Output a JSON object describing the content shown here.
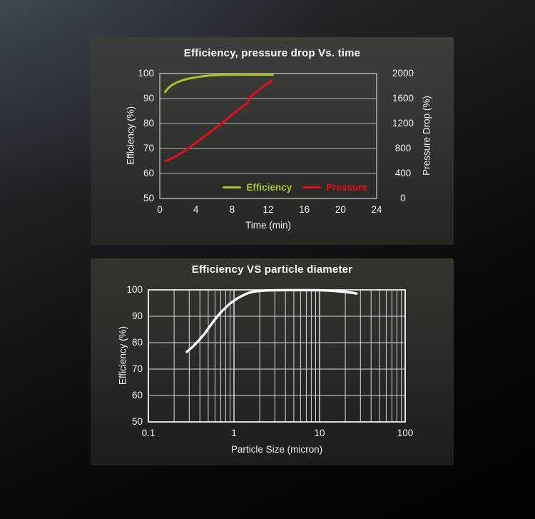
{
  "chart_data": [
    {
      "type": "line",
      "title": "Efficiency, pressure drop Vs. time",
      "xlabel": "Time (min)",
      "xlim": [
        0,
        24
      ],
      "x_ticks": [
        0,
        4,
        8,
        12,
        16,
        20,
        24
      ],
      "ylabel_left": "Efficiency (%)",
      "ylim_left": [
        50,
        100
      ],
      "yticks_left": [
        50,
        60,
        70,
        80,
        90,
        100
      ],
      "ylabel_right": "Pressure Drop (%)",
      "ylim_right": [
        0,
        2000
      ],
      "yticks_right": [
        0,
        400,
        800,
        1200,
        1600,
        2000
      ],
      "grid": "horizontal",
      "grid_color": "#b5b5b5",
      "border_color": "#cfcfcf",
      "legend_position": "inside-bottom-right",
      "series": [
        {
          "name": "Efficiency",
          "axis": "left",
          "color": "#a4c428",
          "width": 3,
          "points": [
            [
              0.6,
              92.6
            ],
            [
              0.8,
              93.6
            ],
            [
              1.0,
              94.4
            ],
            [
              1.3,
              95.2
            ],
            [
              1.6,
              95.9
            ],
            [
              2.0,
              96.6
            ],
            [
              2.5,
              97.3
            ],
            [
              3.0,
              97.8
            ],
            [
              3.5,
              98.2
            ],
            [
              4.0,
              98.5
            ],
            [
              4.5,
              98.8
            ],
            [
              5.0,
              99.0
            ],
            [
              5.5,
              99.2
            ],
            [
              6.0,
              99.3
            ],
            [
              7.0,
              99.45
            ],
            [
              8.0,
              99.5
            ],
            [
              9.0,
              99.55
            ],
            [
              10.0,
              99.55
            ],
            [
              11.0,
              99.55
            ],
            [
              12.5,
              99.55
            ]
          ]
        },
        {
          "name": "Pressure",
          "axis": "right",
          "color": "#e60d20",
          "width": 3,
          "points": [
            [
              0.6,
              600
            ],
            [
              1.0,
              620
            ],
            [
              1.5,
              655
            ],
            [
              2.0,
              695
            ],
            [
              2.5,
              740
            ],
            [
              3.0,
              790
            ],
            [
              3.5,
              840
            ],
            [
              4.0,
              890
            ],
            [
              4.5,
              945
            ],
            [
              5.0,
              1000
            ],
            [
              5.5,
              1055
            ],
            [
              6.0,
              1110
            ],
            [
              6.5,
              1165
            ],
            [
              7.0,
              1220
            ],
            [
              7.5,
              1280
            ],
            [
              8.0,
              1340
            ],
            [
              8.5,
              1400
            ],
            [
              9.0,
              1455
            ],
            [
              9.5,
              1505
            ],
            [
              9.7,
              1530
            ],
            [
              9.9,
              1610
            ],
            [
              10.2,
              1650
            ],
            [
              10.6,
              1700
            ],
            [
              11.0,
              1745
            ],
            [
              11.5,
              1800
            ],
            [
              12.0,
              1850
            ],
            [
              12.4,
              1890
            ]
          ]
        }
      ]
    },
    {
      "type": "line",
      "title": "Efficiency VS particle diameter",
      "xlabel": "Particle Size (micron)",
      "xscale": "log",
      "xlim": [
        0.1,
        100
      ],
      "x_ticks": [
        0.1,
        1,
        10,
        100
      ],
      "x_gridlines": [
        0.1,
        0.2,
        0.3,
        0.4,
        0.5,
        0.6,
        0.7,
        0.8,
        0.9,
        1,
        2,
        3,
        4,
        5,
        6,
        7,
        8,
        9,
        10,
        20,
        30,
        40,
        50,
        60,
        70,
        80,
        90,
        100
      ],
      "ylabel": "Efficiency (%)",
      "ylim": [
        50,
        100
      ],
      "yticks": [
        50,
        60,
        70,
        80,
        90,
        100
      ],
      "grid": "both",
      "grid_color": "#d9d9d9",
      "border_color": "#eeeeee",
      "series": [
        {
          "name": "Efficiency",
          "axis": "left",
          "color": "#ffffff",
          "width": 3.4,
          "points": [
            [
              0.28,
              76.5
            ],
            [
              0.3,
              77.3
            ],
            [
              0.33,
              78.5
            ],
            [
              0.36,
              79.7
            ],
            [
              0.4,
              81.3
            ],
            [
              0.45,
              83.3
            ],
            [
              0.5,
              85.3
            ],
            [
              0.55,
              87.2
            ],
            [
              0.6,
              88.8
            ],
            [
              0.65,
              90.2
            ],
            [
              0.7,
              91.4
            ],
            [
              0.75,
              92.4
            ],
            [
              0.8,
              93.3
            ],
            [
              0.85,
              94.1
            ],
            [
              0.9,
              94.8
            ],
            [
              1.0,
              95.9
            ],
            [
              1.1,
              96.8
            ],
            [
              1.2,
              97.5
            ],
            [
              1.35,
              98.3
            ],
            [
              1.5,
              98.9
            ],
            [
              1.7,
              99.3
            ],
            [
              2.0,
              99.6
            ],
            [
              2.5,
              99.8
            ],
            [
              3.0,
              99.85
            ],
            [
              4.0,
              99.9
            ],
            [
              5.0,
              99.9
            ],
            [
              7.0,
              99.9
            ],
            [
              10.0,
              99.85
            ],
            [
              13.0,
              99.7
            ],
            [
              16.0,
              99.5
            ],
            [
              20.0,
              99.2
            ],
            [
              24.0,
              98.9
            ],
            [
              27.0,
              98.6
            ]
          ]
        }
      ]
    }
  ]
}
